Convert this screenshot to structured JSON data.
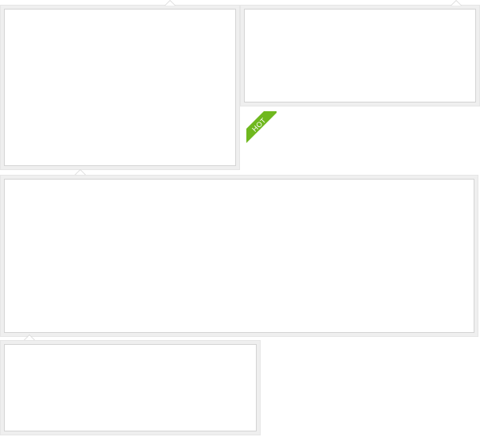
{
  "badge": {
    "label": "HOT",
    "color": "#6fb81e"
  },
  "panels": [
    {
      "name": "panel-top-left"
    },
    {
      "name": "panel-top-right"
    },
    {
      "name": "panel-wide"
    },
    {
      "name": "panel-bottom-left"
    }
  ]
}
